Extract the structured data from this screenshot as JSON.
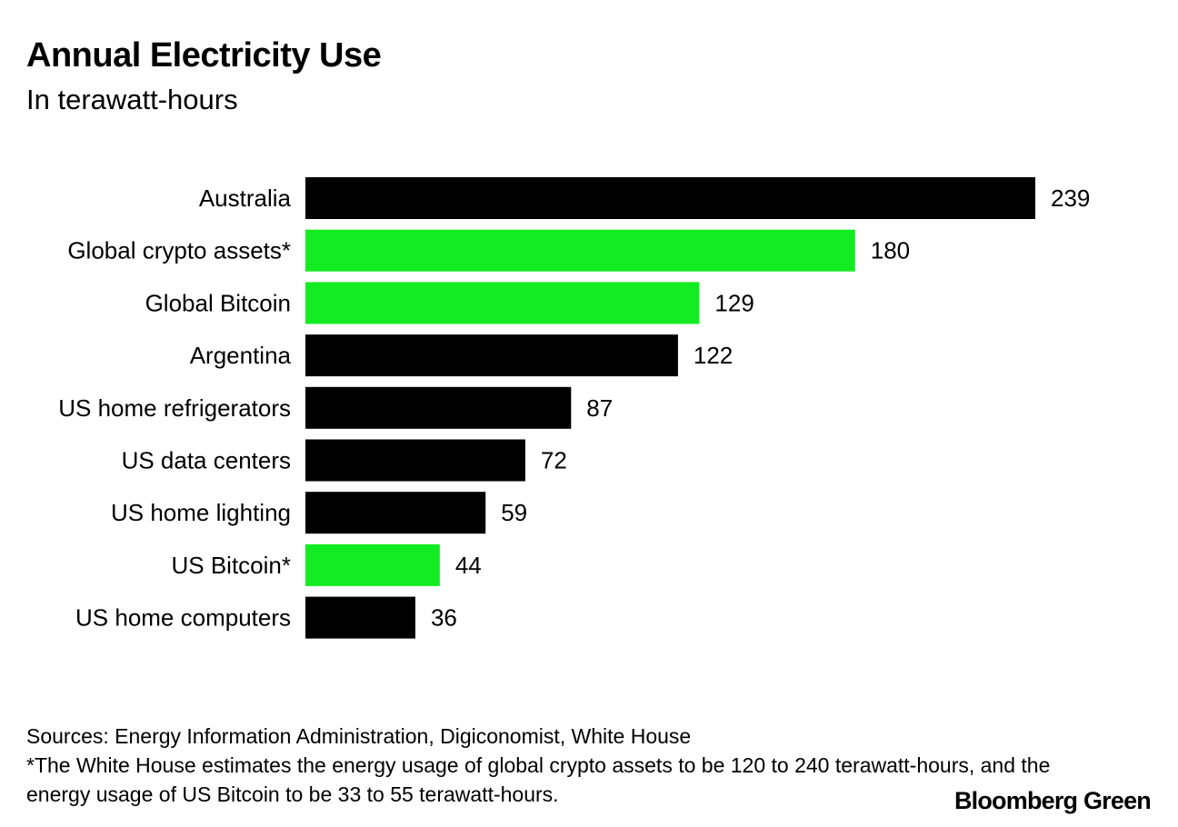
{
  "chart_data": {
    "type": "bar",
    "orientation": "horizontal",
    "title": "Annual Electricity Use",
    "subtitle": "In terawatt-hours",
    "categories": [
      "Australia",
      "Global crypto assets*",
      "Global Bitcoin",
      "Argentina",
      "US home refrigerators",
      "US data centers",
      "US home lighting",
      "US Bitcoin*",
      "US home computers"
    ],
    "values": [
      239,
      180,
      129,
      122,
      87,
      72,
      59,
      44,
      36
    ],
    "highlight": [
      false,
      true,
      true,
      false,
      false,
      false,
      false,
      true,
      false
    ],
    "colors": {
      "default": "#000000",
      "highlight": "#13ec22"
    },
    "xlim": [
      0,
      239
    ],
    "grid": false,
    "data_labels": true
  },
  "footer": {
    "sources": "Sources: Energy Information Administration, Digiconomist, White House",
    "note": "*The White House estimates the energy usage of global crypto assets to be 120 to 240 terawatt-hours, and the energy usage of US Bitcoin to be 33 to 55 terawatt-hours.",
    "brand": "Bloomberg Green"
  }
}
